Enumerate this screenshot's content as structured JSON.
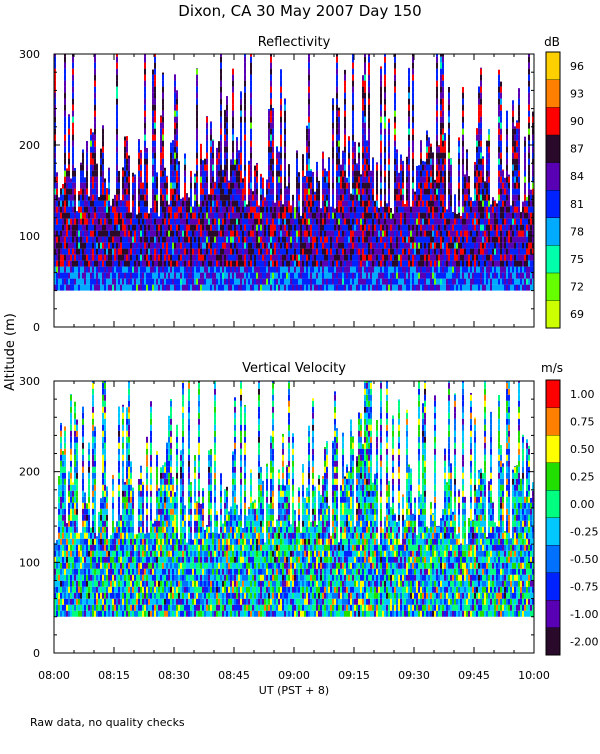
{
  "title": "Dixon, CA 30 May 2007  Day 150",
  "ylabel": "Altitude (m)",
  "xlabel": "UT  (PST + 8)",
  "footnote": "Raw data, no quality checks",
  "chart_data": [
    {
      "type": "heatmap",
      "title": "Reflectivity",
      "colorbar_unit": "dB",
      "colorbar_ticks": [
        "69",
        "72",
        "75",
        "78",
        "81",
        "84",
        "87",
        "90",
        "93",
        "96"
      ],
      "colorbar_colors": [
        "#ccff00",
        "#66ff00",
        "#00ffaa",
        "#00aaff",
        "#0022ff",
        "#5a00b4",
        "#2a0a2a",
        "#ff0000",
        "#ff8000",
        "#ffd000"
      ],
      "x_range": [
        "08:00",
        "10:00"
      ],
      "x_ticks": [
        "08:00",
        "08:15",
        "08:30",
        "08:45",
        "09:00",
        "09:15",
        "09:30",
        "09:45",
        "10:00"
      ],
      "y_range": [
        0,
        300
      ],
      "y_ticks": [
        "0",
        "100",
        "200",
        "300"
      ],
      "data_floor_altitude_m": 40,
      "data_top_altitude_m": 300
    },
    {
      "type": "heatmap",
      "title": "Vertical Velocity",
      "colorbar_unit": "m/s",
      "colorbar_ticks": [
        "-2.00",
        "-1.00",
        "-0.75",
        "-0.50",
        "-0.25",
        "0.00",
        "0.25",
        "0.50",
        "0.75",
        "1.00"
      ],
      "colorbar_colors": [
        "#2a0a2a",
        "#5a00b4",
        "#0022ff",
        "#0070ff",
        "#00c8ff",
        "#00ff80",
        "#22dd00",
        "#ffff00",
        "#ff8000",
        "#ff0000"
      ],
      "x_range": [
        "08:00",
        "10:00"
      ],
      "x_ticks": [
        "08:00",
        "08:15",
        "08:30",
        "08:45",
        "09:00",
        "09:15",
        "09:30",
        "09:45",
        "10:00"
      ],
      "y_range": [
        0,
        300
      ],
      "y_ticks": [
        "0",
        "100",
        "200",
        "300"
      ],
      "data_floor_altitude_m": 40,
      "data_top_altitude_m": 300
    }
  ]
}
